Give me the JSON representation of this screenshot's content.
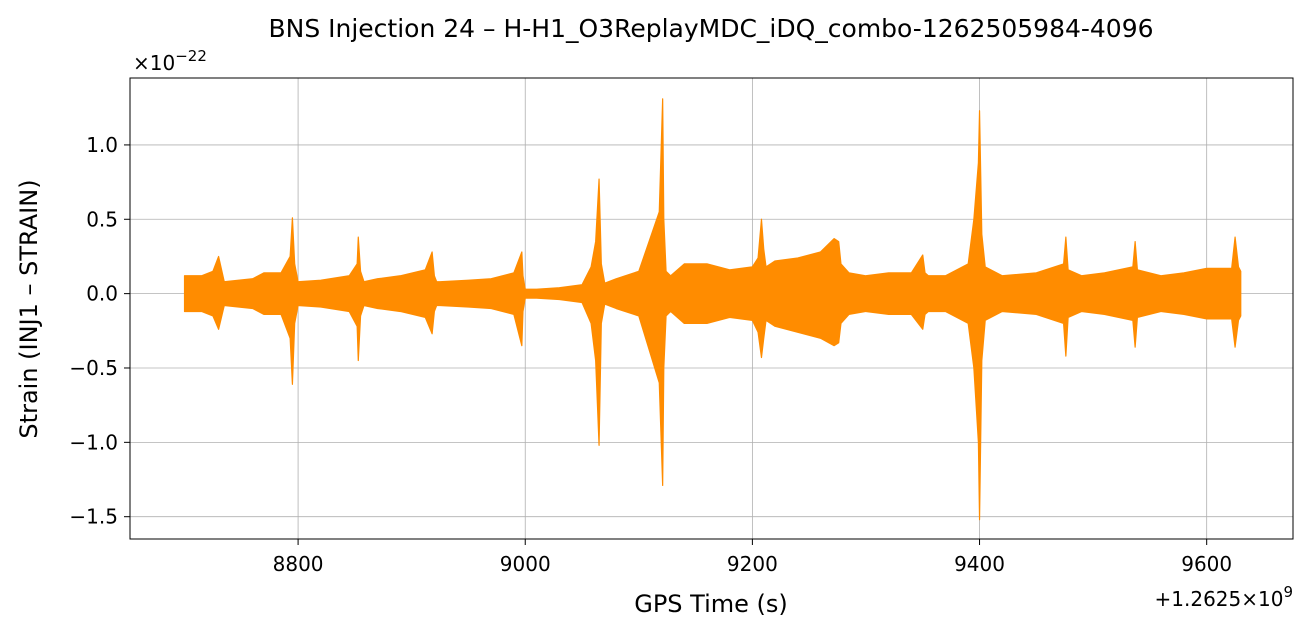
{
  "chart_data": {
    "type": "line",
    "title": "BNS Injection 24 – H-H1_O3ReplayMDC_iDQ_combo-1262505984-4096",
    "xlabel": "GPS Time (s)",
    "ylabel": "Strain (INJ1 – STRAIN)",
    "y_multiplier": "×10",
    "y_multiplier_exp": "−22",
    "x_offset_prefix": "+1.2625×10",
    "x_offset_exp": "9",
    "xlim": [
      8652,
      9676
    ],
    "ylim": [
      -1.65,
      1.45
    ],
    "xticks": [
      8800,
      9000,
      9200,
      9400,
      9600
    ],
    "xtick_labels": [
      "8800",
      "9000",
      "9200",
      "9400",
      "9600"
    ],
    "yticks": [
      -1.5,
      -1.0,
      -0.5,
      0.0,
      0.5,
      1.0
    ],
    "ytick_labels": [
      "−1.5",
      "−1.0",
      "−0.5",
      "0.0",
      "0.5",
      "1.0"
    ],
    "grid": true,
    "series": [
      {
        "color": "#ff8c00",
        "x": [
          8700,
          8715,
          8725,
          8730,
          8735,
          8760,
          8770,
          8785,
          8793,
          8795,
          8797,
          8800,
          8820,
          8845,
          8852,
          8853,
          8855,
          8858,
          8870,
          8890,
          8912,
          8918,
          8920,
          8922,
          8925,
          8950,
          8970,
          8990,
          8997,
          8998,
          9000,
          9010,
          9030,
          9050,
          9058,
          9062,
          9065,
          9067,
          9070,
          9080,
          9100,
          9118,
          9121,
          9122,
          9124,
          9128,
          9140,
          9160,
          9180,
          9200,
          9205,
          9208,
          9210,
          9212,
          9220,
          9240,
          9260,
          9272,
          9276,
          9278,
          9285,
          9300,
          9320,
          9340,
          9350,
          9352,
          9355,
          9370,
          9390,
          9395,
          9399,
          9400,
          9402,
          9405,
          9420,
          9450,
          9474,
          9476,
          9478,
          9490,
          9510,
          9535,
          9537,
          9539,
          9560,
          9580,
          9600,
          9622,
          9625,
          9628,
          9630
        ],
        "upper": [
          0.12,
          0.12,
          0.15,
          0.25,
          0.08,
          0.1,
          0.14,
          0.14,
          0.25,
          0.51,
          0.2,
          0.08,
          0.09,
          0.12,
          0.2,
          0.38,
          0.15,
          0.08,
          0.1,
          0.12,
          0.16,
          0.28,
          0.12,
          0.08,
          0.08,
          0.09,
          0.1,
          0.14,
          0.28,
          0.12,
          0.03,
          0.03,
          0.04,
          0.06,
          0.18,
          0.35,
          0.77,
          0.2,
          0.07,
          0.1,
          0.15,
          0.55,
          1.31,
          0.5,
          0.15,
          0.12,
          0.2,
          0.2,
          0.16,
          0.18,
          0.24,
          0.5,
          0.3,
          0.18,
          0.22,
          0.24,
          0.28,
          0.37,
          0.35,
          0.2,
          0.14,
          0.12,
          0.14,
          0.14,
          0.26,
          0.14,
          0.12,
          0.12,
          0.2,
          0.5,
          0.88,
          1.23,
          0.4,
          0.18,
          0.12,
          0.14,
          0.2,
          0.38,
          0.16,
          0.12,
          0.14,
          0.18,
          0.35,
          0.16,
          0.12,
          0.14,
          0.17,
          0.17,
          0.38,
          0.18,
          0.15
        ],
        "lower": [
          -0.12,
          -0.12,
          -0.15,
          -0.24,
          -0.08,
          -0.1,
          -0.14,
          -0.14,
          -0.3,
          -0.61,
          -0.2,
          -0.08,
          -0.09,
          -0.12,
          -0.22,
          -0.45,
          -0.15,
          -0.08,
          -0.1,
          -0.12,
          -0.16,
          -0.27,
          -0.12,
          -0.08,
          -0.08,
          -0.09,
          -0.1,
          -0.14,
          -0.35,
          -0.12,
          -0.03,
          -0.03,
          -0.04,
          -0.06,
          -0.2,
          -0.45,
          -1.02,
          -0.2,
          -0.07,
          -0.1,
          -0.15,
          -0.6,
          -1.29,
          -0.5,
          -0.15,
          -0.12,
          -0.2,
          -0.2,
          -0.16,
          -0.18,
          -0.26,
          -0.43,
          -0.3,
          -0.18,
          -0.22,
          -0.26,
          -0.3,
          -0.35,
          -0.33,
          -0.2,
          -0.14,
          -0.12,
          -0.14,
          -0.14,
          -0.24,
          -0.14,
          -0.12,
          -0.12,
          -0.2,
          -0.5,
          -1.0,
          -1.52,
          -0.45,
          -0.18,
          -0.12,
          -0.14,
          -0.2,
          -0.42,
          -0.16,
          -0.12,
          -0.14,
          -0.18,
          -0.36,
          -0.16,
          -0.12,
          -0.14,
          -0.17,
          -0.17,
          -0.36,
          -0.18,
          -0.15
        ]
      }
    ]
  }
}
